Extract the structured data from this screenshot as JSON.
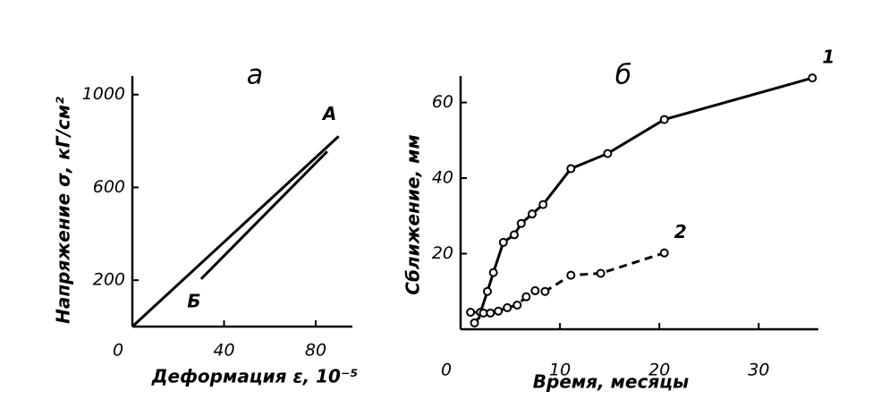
{
  "chart_data": [
    {
      "type": "line",
      "title": "а",
      "x_label": "Деформация ε, 10⁻⁵",
      "y_label": "Напряжение σ, кГ/см²",
      "xlim": [
        0,
        96
      ],
      "ylim": [
        0,
        1080
      ],
      "xticks": [
        0,
        40,
        80
      ],
      "yticks": [
        200,
        600,
        1000
      ],
      "series": [
        {
          "name": "А",
          "color": "#000000",
          "x": [
            0,
            90
          ],
          "values": [
            0,
            820
          ],
          "label_position": "end",
          "markers": false,
          "line_style": "solid"
        },
        {
          "name": "Б",
          "color": "#000000",
          "x": [
            30,
            85
          ],
          "values": [
            205,
            755
          ],
          "label_position": "start",
          "markers": false,
          "line_style": "solid"
        }
      ]
    },
    {
      "type": "line",
      "title": "б",
      "x_label": "Время, месяцы",
      "y_label": "Сближение, мм",
      "xlim": [
        0,
        36
      ],
      "ylim": [
        0,
        67
      ],
      "xticks": [
        0,
        10,
        20,
        30
      ],
      "yticks": [
        20,
        40,
        60
      ],
      "series": [
        {
          "name": "1",
          "color": "#000000",
          "x": [
            1,
            2,
            2.7,
            3.3,
            4.3,
            5.4,
            6.1,
            7.2,
            8.3,
            11.1,
            14.8,
            20.5,
            35.4
          ],
          "values": [
            4.5,
            4.5,
            10,
            15,
            23,
            25,
            28,
            30.5,
            33,
            42.5,
            46.5,
            55.5,
            66.5
          ],
          "label_position": "end",
          "markers": true,
          "line_style": "solid"
        },
        {
          "name": "2",
          "color": "#000000",
          "x": [
            1.4,
            2.3,
            3.0,
            3.8,
            4.7,
            5.7,
            6.6,
            7.5,
            8.5,
            11.1,
            14.1,
            20.5
          ],
          "values": [
            1.7,
            4.3,
            4.3,
            4.8,
            5.7,
            6.4,
            8.6,
            10.2,
            10,
            14.3,
            14.8,
            20.2
          ],
          "label_position": "end",
          "markers": true,
          "line_style": "dashed"
        }
      ]
    }
  ]
}
